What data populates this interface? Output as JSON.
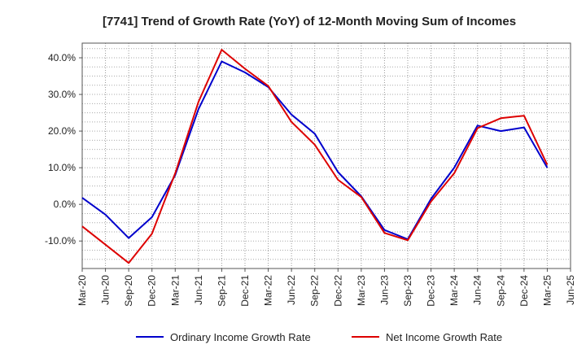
{
  "chart_data": {
    "type": "line",
    "title": "[7741]  Trend of Growth Rate (YoY) of 12-Month Moving Sum of Incomes",
    "xlabel": "",
    "ylabel": "",
    "categories": [
      "Mar-20",
      "Jun-20",
      "Sep-20",
      "Dec-20",
      "Mar-21",
      "Jun-21",
      "Sep-21",
      "Dec-21",
      "Mar-22",
      "Jun-22",
      "Sep-22",
      "Dec-22",
      "Mar-23",
      "Jun-23",
      "Sep-23",
      "Dec-23",
      "Mar-24",
      "Jun-24",
      "Sep-24",
      "Dec-24",
      "Mar-25",
      "Jun-25"
    ],
    "ylim": [
      -17.5,
      44
    ],
    "yticks": [
      -10,
      0,
      10,
      20,
      30,
      40
    ],
    "ytick_labels": [
      "-10.0%",
      "0.0%",
      "10.0%",
      "20.0%",
      "30.0%",
      "40.0%"
    ],
    "grid": true,
    "legend_position": "bottom",
    "series": [
      {
        "name": "Ordinary Income Growth Rate",
        "color": "#0000cc",
        "values": [
          1.8,
          -2.8,
          -9.2,
          -3.5,
          8.0,
          26.0,
          39.0,
          36.0,
          32.0,
          24.5,
          19.3,
          8.8,
          2.2,
          -7.0,
          -9.5,
          1.5,
          10.0,
          21.5,
          20.0,
          21.0,
          10.0,
          null
        ]
      },
      {
        "name": "Net Income Growth Rate",
        "color": "#dd0000",
        "values": [
          -6.0,
          -11.0,
          -16.0,
          -8.0,
          8.5,
          28.0,
          42.2,
          37.0,
          32.3,
          22.5,
          16.3,
          6.7,
          2.0,
          -7.8,
          -9.8,
          0.8,
          8.5,
          20.8,
          23.5,
          24.2,
          10.8,
          null
        ]
      }
    ]
  }
}
